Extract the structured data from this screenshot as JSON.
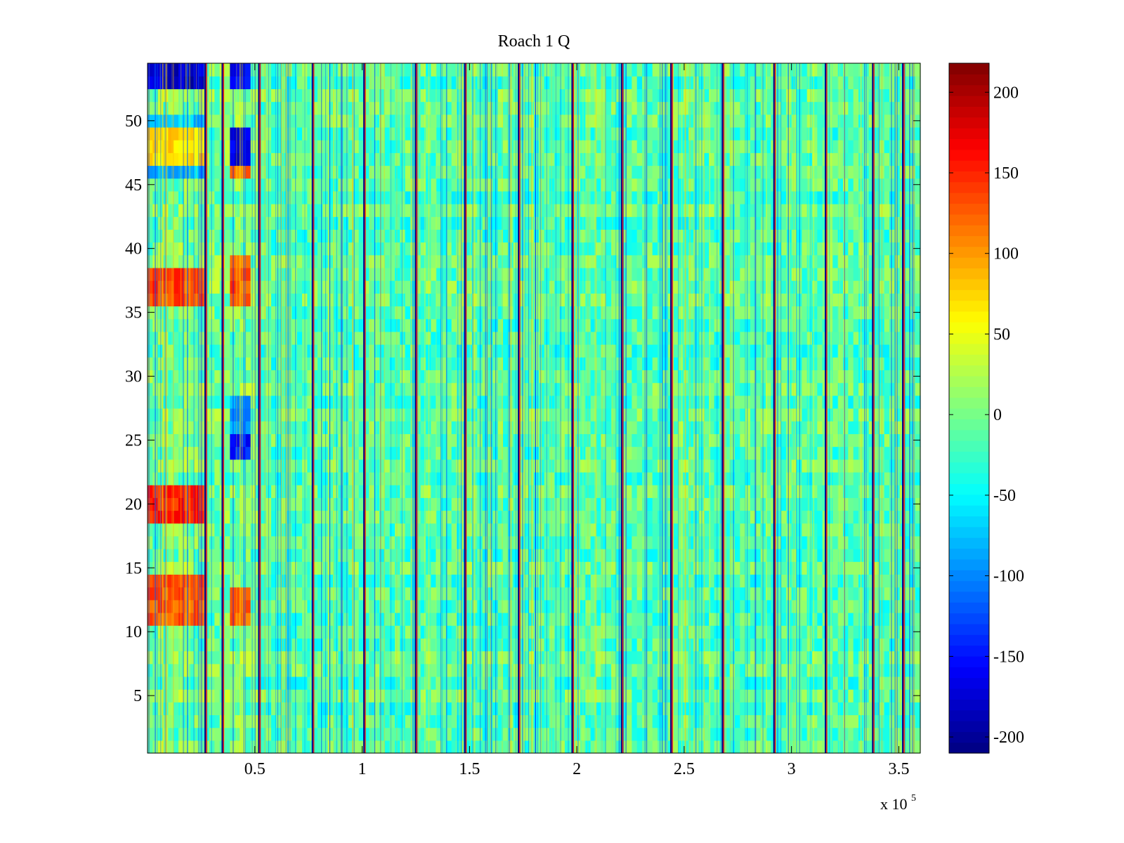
{
  "chart_data": {
    "type": "heatmap",
    "title": "Roach 1 Q",
    "xlabel": "",
    "ylabel": "",
    "x_multiplier_label": "x 10",
    "x_multiplier_exponent": "5",
    "xlim": [
      0,
      360000
    ],
    "ylim": [
      0.5,
      54.5
    ],
    "x_ticks": [
      0.5,
      1,
      1.5,
      2,
      2.5,
      3,
      3.5
    ],
    "x_tick_labels": [
      "0.5",
      "1",
      "1.5",
      "2",
      "2.5",
      "3",
      "3.5"
    ],
    "y_ticks": [
      5,
      10,
      15,
      20,
      25,
      30,
      35,
      40,
      45,
      50
    ],
    "y_tick_labels": [
      "5",
      "10",
      "15",
      "20",
      "25",
      "30",
      "35",
      "40",
      "45",
      "50"
    ],
    "rows": 54,
    "colorbar": {
      "colormap": "jet",
      "clim": [
        -210,
        218
      ],
      "ticks": [
        -200,
        -150,
        -100,
        -50,
        0,
        50,
        100,
        150,
        200
      ],
      "tick_labels": [
        "-200",
        "-150",
        "-100",
        "-50",
        "0",
        "50",
        "100",
        "150",
        "200"
      ]
    },
    "periodic_spikes_x": [
      27000,
      35000,
      52000,
      77000,
      101000,
      125000,
      148000,
      173000,
      198000,
      221000,
      244000,
      268000,
      292000,
      316000,
      338000,
      352000
    ],
    "features": [
      {
        "x_range": [
          0,
          27000
        ],
        "rows": [
          11,
          12,
          13,
          14
        ],
        "value": 130
      },
      {
        "x_range": [
          0,
          27000
        ],
        "rows": [
          36,
          37,
          38
        ],
        "value": 140
      },
      {
        "x_range": [
          0,
          27000
        ],
        "rows": [
          19,
          20,
          21
        ],
        "value": 150
      },
      {
        "x_range": [
          0,
          27000
        ],
        "rows": [
          47,
          48,
          49
        ],
        "value": 70
      },
      {
        "x_range": [
          0,
          27000
        ],
        "rows": [
          46
        ],
        "value": -80
      },
      {
        "x_range": [
          0,
          27000
        ],
        "rows": [
          50
        ],
        "value": -70
      },
      {
        "x_range": [
          0,
          27000
        ],
        "rows": [
          53,
          54
        ],
        "value": -180
      },
      {
        "x_range": [
          38000,
          49000
        ],
        "rows": [
          53,
          54
        ],
        "value": -160
      },
      {
        "x_range": [
          38000,
          49000
        ],
        "rows": [
          47,
          48,
          49
        ],
        "value": -170
      },
      {
        "x_range": [
          38000,
          49000
        ],
        "rows": [
          46
        ],
        "value": 120
      },
      {
        "x_range": [
          38000,
          49000
        ],
        "rows": [
          36,
          37,
          38,
          39
        ],
        "value": 130
      },
      {
        "x_range": [
          38000,
          49000
        ],
        "rows": [
          24,
          25
        ],
        "value": -150
      },
      {
        "x_range": [
          38000,
          49000
        ],
        "rows": [
          11,
          12,
          13
        ],
        "value": 120
      },
      {
        "x_range": [
          38000,
          49000
        ],
        "rows": [
          26,
          27,
          28
        ],
        "value": -90
      }
    ]
  }
}
